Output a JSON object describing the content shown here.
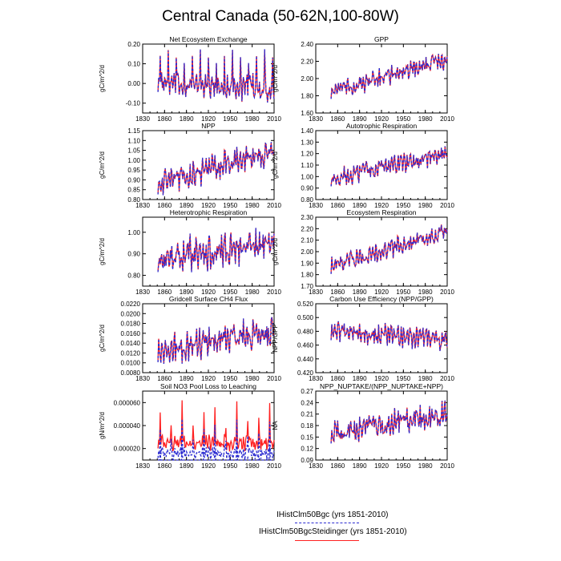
{
  "title": "Central Canada (50-62N,100-80W)",
  "colors": {
    "blue": "#2a2ad0",
    "red": "#ff2020"
  },
  "legend": {
    "items": [
      {
        "label": "IHistClm50Bgc (yrs 1851-2010)",
        "color": "#2a2ad0",
        "style": "dashed"
      },
      {
        "label": "IHistClm50BgcSteidinger (yrs 1851-2010)",
        "color": "#ff2020",
        "style": "solid"
      }
    ]
  },
  "chart_data": [
    {
      "type": "line",
      "title": "Net Ecosystem Exchange",
      "ylabel": "gC/m^2/d",
      "xlim": [
        1830,
        2010
      ],
      "ylim": [
        -0.15,
        0.2
      ],
      "xticks": [
        "1830",
        "1860",
        "1890",
        "1920",
        "1950",
        "1980",
        "2010"
      ],
      "yticks": [
        "-0.10",
        "0.00",
        "0.10",
        "0.20"
      ],
      "years": [
        1851,
        2010
      ],
      "base": [
        0.0,
        -0.03
      ],
      "amp": [
        0.04,
        0.05
      ],
      "spike": 0.17,
      "period": 11,
      "series": [
        {
          "color": "#ff2020",
          "style": "solid"
        },
        {
          "color": "#2a2ad0",
          "style": "dashed"
        }
      ]
    },
    {
      "type": "line",
      "title": "GPP",
      "ylabel": "gC/m^2/d",
      "xlim": [
        1830,
        2010
      ],
      "ylim": [
        1.6,
        2.4
      ],
      "xticks": [
        "1830",
        "1860",
        "1890",
        "1920",
        "1950",
        "1980",
        "2010"
      ],
      "yticks": [
        "1.60",
        "1.80",
        "2.00",
        "2.20",
        "2.40"
      ],
      "years": [
        1851,
        2010
      ],
      "base": [
        1.85,
        2.22
      ],
      "amp": [
        0.08,
        0.08
      ],
      "spike": 0,
      "period": 11,
      "series": [
        {
          "color": "#ff2020",
          "style": "solid"
        },
        {
          "color": "#2a2ad0",
          "style": "dashed"
        }
      ]
    },
    {
      "type": "line",
      "title": "NPP",
      "ylabel": "gC/m^2/d",
      "xlim": [
        1830,
        2010
      ],
      "ylim": [
        0.8,
        1.15
      ],
      "xticks": [
        "1830",
        "1860",
        "1890",
        "1920",
        "1950",
        "1980",
        "2010"
      ],
      "yticks": [
        "0.80",
        "0.85",
        "0.90",
        "0.95",
        "1.00",
        "1.05",
        "1.10",
        "1.15"
      ],
      "years": [
        1851,
        2010
      ],
      "base": [
        0.88,
        1.05
      ],
      "amp": [
        0.05,
        0.05
      ],
      "spike": 0,
      "period": 11,
      "series": [
        {
          "color": "#ff2020",
          "style": "solid"
        },
        {
          "color": "#2a2ad0",
          "style": "dashed"
        }
      ]
    },
    {
      "type": "line",
      "title": "Autotrophic Respiration",
      "ylabel": "gC/m^2/d",
      "xlim": [
        1830,
        2010
      ],
      "ylim": [
        0.8,
        1.4
      ],
      "xticks": [
        "1830",
        "1860",
        "1890",
        "1920",
        "1950",
        "1980",
        "2010"
      ],
      "yticks": [
        "0.80",
        "0.90",
        "1.00",
        "1.10",
        "1.20",
        "1.30",
        "1.40"
      ],
      "years": [
        1851,
        2010
      ],
      "base": [
        0.98,
        1.2
      ],
      "amp": [
        0.06,
        0.06
      ],
      "spike": 0,
      "period": 11,
      "series": [
        {
          "color": "#ff2020",
          "style": "solid"
        },
        {
          "color": "#2a2ad0",
          "style": "dashed"
        }
      ]
    },
    {
      "type": "line",
      "title": "Heterotrophic Respiration",
      "ylabel": "gC/m^2/d",
      "xlim": [
        1830,
        2010
      ],
      "ylim": [
        0.75,
        1.07
      ],
      "xticks": [
        "1830",
        "1860",
        "1890",
        "1920",
        "1950",
        "1980",
        "2010"
      ],
      "yticks": [
        "0.80",
        "0.90",
        "1.00"
      ],
      "years": [
        1851,
        2010
      ],
      "base": [
        0.88,
        0.95
      ],
      "amp": [
        0.06,
        0.06
      ],
      "spike": 0,
      "period": 11,
      "series": [
        {
          "color": "#ff2020",
          "style": "solid"
        },
        {
          "color": "#2a2ad0",
          "style": "dashed"
        }
      ]
    },
    {
      "type": "line",
      "title": "Ecosystem Respiration",
      "ylabel": "gC/m^2/d",
      "xlim": [
        1830,
        2010
      ],
      "ylim": [
        1.7,
        2.3
      ],
      "xticks": [
        "1830",
        "1860",
        "1890",
        "1920",
        "1950",
        "1980",
        "2010"
      ],
      "yticks": [
        "1.70",
        "1.80",
        "1.90",
        "2.00",
        "2.10",
        "2.20",
        "2.30"
      ],
      "years": [
        1851,
        2010
      ],
      "base": [
        1.87,
        2.18
      ],
      "amp": [
        0.06,
        0.06
      ],
      "spike": 0,
      "period": 11,
      "series": [
        {
          "color": "#ff2020",
          "style": "solid"
        },
        {
          "color": "#2a2ad0",
          "style": "dashed"
        }
      ]
    },
    {
      "type": "line",
      "title": "Gridcell Surface CH4 Flux",
      "ylabel": "gC/m^2/d",
      "xlim": [
        1830,
        2010
      ],
      "ylim": [
        0.008,
        0.022
      ],
      "xticks": [
        "1830",
        "1860",
        "1890",
        "1920",
        "1950",
        "1980",
        "2010"
      ],
      "yticks": [
        "0.0080",
        "0.0100",
        "0.0120",
        "0.0140",
        "0.0160",
        "0.0180",
        "0.0200",
        "0.0220"
      ],
      "years": [
        1851,
        2010
      ],
      "base": [
        0.0125,
        0.0165
      ],
      "amp": [
        0.0022,
        0.0022
      ],
      "spike": 0,
      "period": 11,
      "series": [
        {
          "color": "#ff2020",
          "style": "solid"
        },
        {
          "color": "#2a2ad0",
          "style": "dashed"
        }
      ]
    },
    {
      "type": "line",
      "title": "Carbon Use Efficiency (NPP/GPP)",
      "ylabel": "NPP/GPP",
      "xlim": [
        1830,
        2010
      ],
      "ylim": [
        0.42,
        0.52
      ],
      "xticks": [
        "1830",
        "1860",
        "1890",
        "1920",
        "1950",
        "1980",
        "2010"
      ],
      "yticks": [
        "0.420",
        "0.440",
        "0.460",
        "0.480",
        "0.500",
        "0.520"
      ],
      "years": [
        1851,
        2010
      ],
      "base": [
        0.48,
        0.468
      ],
      "amp": [
        0.012,
        0.012
      ],
      "spike": 0,
      "period": 11,
      "series": [
        {
          "color": "#ff2020",
          "style": "solid"
        },
        {
          "color": "#2a2ad0",
          "style": "dashed"
        }
      ]
    },
    {
      "type": "line",
      "title": "Soil NO3 Pool Loss to Leaching",
      "ylabel": "gN/m^2/d",
      "xlim": [
        1830,
        2010
      ],
      "ylim": [
        1e-05,
        7e-05
      ],
      "xticks": [
        "1830",
        "1860",
        "1890",
        "1920",
        "1950",
        "1980",
        "2010"
      ],
      "yticks": [
        "0.000020",
        "0.000040",
        "0.000060"
      ],
      "years": [
        1851,
        2010
      ],
      "base": [
        2.5e-05,
        2.5e-05
      ],
      "amp": [
        5e-06,
        5e-06
      ],
      "spike": 6.2e-05,
      "period": 15,
      "series": [
        {
          "color": "#ff2020",
          "style": "solid",
          "scale": 1.0
        },
        {
          "color": "#2a2ad0",
          "style": "dashed",
          "scale": 0.55,
          "offset": -1.2e-05
        },
        {
          "color": "#2a2ad0",
          "style": "dashed",
          "scale": 0.8,
          "offset": -4e-06
        }
      ]
    },
    {
      "type": "line",
      "title": "NPP_NUPTAKE/(NPP_NUPTAKE+NPP)",
      "ylabel": "NA",
      "xlim": [
        1830,
        2010
      ],
      "ylim": [
        0.09,
        0.27
      ],
      "xticks": [
        "1830",
        "1860",
        "1890",
        "1920",
        "1950",
        "1980",
        "2010"
      ],
      "yticks": [
        "0.09",
        "0.12",
        "0.15",
        "0.18",
        "0.21",
        "0.24",
        "0.27"
      ],
      "years": [
        1851,
        2010
      ],
      "base": [
        0.16,
        0.21
      ],
      "amp": [
        0.025,
        0.025
      ],
      "spike": 0,
      "period": 11,
      "series": [
        {
          "color": "#ff2020",
          "style": "solid"
        },
        {
          "color": "#2a2ad0",
          "style": "dashed"
        }
      ]
    }
  ]
}
